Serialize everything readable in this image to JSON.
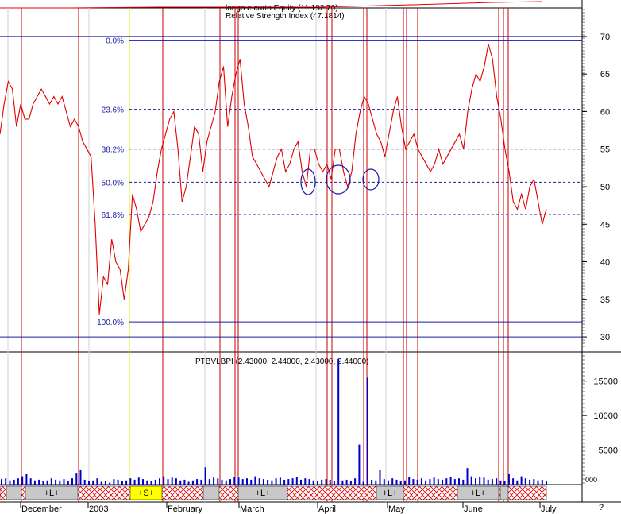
{
  "chart_data": [
    {
      "type": "line",
      "title": "longo e curto Equity (11,182.70)",
      "subtitle": "Relative Strength Index (47.1814)",
      "ylim": [
        28,
        72
      ],
      "y_ticks": [
        30,
        35,
        40,
        45,
        50,
        55,
        60,
        65,
        70
      ],
      "grid": false,
      "series": [
        {
          "name": "Relative Strength Index",
          "color": "#e00000",
          "values": [
            57,
            61,
            64,
            63,
            58,
            61,
            59,
            59,
            61,
            62,
            63,
            62,
            61,
            62,
            61,
            62,
            60,
            58,
            59,
            58,
            56,
            55,
            54,
            45,
            33,
            38,
            37,
            43,
            40,
            39,
            35,
            39,
            49,
            47,
            44,
            45,
            46,
            48,
            52,
            55,
            57,
            59,
            60,
            55,
            48,
            50,
            54,
            58,
            57,
            52,
            56,
            58,
            60,
            64,
            66,
            58,
            62,
            65,
            67,
            61,
            58,
            54,
            53,
            52,
            51,
            50,
            52,
            54,
            55,
            52,
            53,
            55,
            56,
            52,
            50,
            55,
            55,
            53,
            52,
            53,
            51,
            55,
            55,
            52,
            50,
            52,
            57,
            60,
            62,
            61,
            59,
            57,
            56,
            54,
            57,
            60,
            62,
            58,
            55,
            56,
            57,
            55,
            54,
            53,
            52,
            53,
            55,
            53,
            54,
            55,
            56,
            57,
            55,
            60,
            63,
            65,
            64,
            66,
            69,
            67,
            62,
            59,
            55,
            52,
            48,
            47,
            49,
            47,
            50,
            51,
            48,
            45,
            47
          ]
        }
      ],
      "fib_levels": [
        {
          "label": "0.0%",
          "value": 69.5
        },
        {
          "label": "23.6%",
          "value": 60.3
        },
        {
          "label": "38.2%",
          "value": 55.0
        },
        {
          "label": "50.0%",
          "value": 50.6
        },
        {
          "label": "61.8%",
          "value": 46.3
        },
        {
          "label": "100.0%",
          "value": 32.0
        }
      ],
      "ref_lines": [
        70,
        30
      ]
    },
    {
      "type": "bar",
      "title": "PTBVLBPI (2.43000, 2.44000, 2.43000, 2.44000)",
      "ylim": [
        0,
        19000
      ],
      "y_ticks": [
        5000,
        10000,
        15000
      ],
      "y_tick_labels": [
        "5000",
        "10000",
        "15000"
      ],
      "bottom_label": "000",
      "series": [
        {
          "name": "Volume",
          "color": "#0000cc",
          "values": [
            800,
            900,
            600,
            700,
            900,
            1200,
            1500,
            900,
            600,
            700,
            500,
            600,
            900,
            700,
            600,
            800,
            500,
            900,
            1600,
            2200,
            700,
            500,
            600,
            900,
            400,
            500,
            300,
            800,
            700,
            500,
            600,
            900,
            700,
            1000,
            800,
            600,
            500,
            700,
            900,
            1200,
            800,
            1000,
            900,
            600,
            700,
            400,
            600,
            800,
            700,
            2500,
            800,
            1000,
            900,
            700,
            600,
            800,
            1100,
            1000,
            800,
            900,
            700,
            1200,
            900,
            800,
            700,
            600,
            900,
            1000,
            700,
            800,
            900,
            1100,
            700,
            900,
            800,
            600,
            500,
            700,
            800,
            700,
            500,
            18200,
            600,
            700,
            500,
            900,
            5800,
            400,
            15500,
            700,
            600,
            2100,
            800,
            600,
            900,
            700,
            500,
            600,
            1100,
            800,
            700,
            900,
            600,
            800,
            1000,
            800,
            700,
            900,
            1100,
            800,
            900,
            700,
            2400,
            1200,
            900,
            1100,
            1000,
            700,
            800,
            900,
            600,
            500,
            1500,
            900,
            600,
            1200,
            900,
            700,
            800,
            600,
            700,
            500
          ]
        }
      ]
    }
  ],
  "month_labels": [
    "December",
    "2003",
    "February",
    "March",
    "April",
    "May",
    "June",
    "July"
  ],
  "signals": [
    "+L+",
    "+S+",
    "+L+",
    "+L+",
    "+L+"
  ],
  "corner_label": "?",
  "colors": {
    "rsi": "#e00000",
    "fib": "#1a1aa6",
    "volume": "#0000cc",
    "signal_line": "#cc0000",
    "short_line": "#e6e600",
    "hatch": "#e00000",
    "long_band": "#c8c8c8",
    "short_band": "#ffff00"
  }
}
